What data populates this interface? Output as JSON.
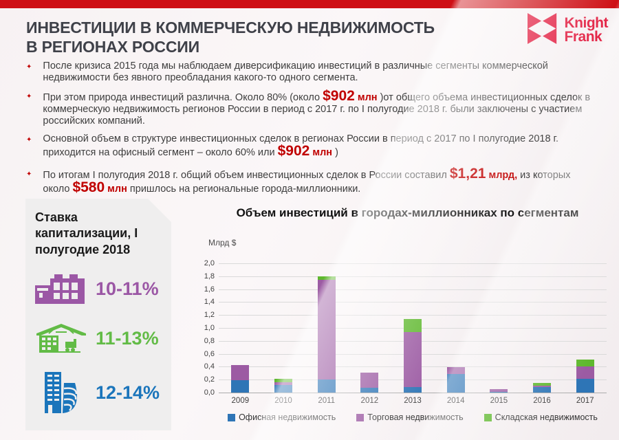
{
  "header": {
    "title_line1": "ИНВЕСТИЦИИ В КОММЕРЧЕСКУЮ НЕДВИЖИМОСТЬ",
    "title_line2": "В РЕГИОНАХ РОССИИ",
    "logo_line1": "Knight",
    "logo_line2": "Frank"
  },
  "bullets": [
    {
      "segments": [
        {
          "s": "n",
          "t": "После кризиса 2015 года мы наблюдаем диверсификацию инвестиций в различные сегменты коммерческой недвижимости без явного преобладания какого-то одного сегмента."
        }
      ]
    },
    {
      "segments": [
        {
          "s": "n",
          "t": "При этом природа инвестиций различна. Около 80% (около "
        },
        {
          "s": "br",
          "t": "$902"
        },
        {
          "s": "sr",
          "t": " млн"
        },
        {
          "s": "n",
          "t": " )от общего объема инвестиционных сделок в коммерческую недвижимость регионов России в период с 2017 г. по I полугодие 2018 г. были заключены с участием российских компаний."
        }
      ]
    },
    {
      "segments": [
        {
          "s": "n",
          "t": "Основной объем в структуре  инвестиционных сделок в регионах России в период с 2017 по I полугодие 2018 г. приходится на офисный сегмент – около 60% или "
        },
        {
          "s": "br",
          "t": "$902"
        },
        {
          "s": "sr",
          "t": " млн"
        },
        {
          "s": "n",
          "t": " )"
        }
      ]
    },
    {
      "segments": [
        {
          "s": "n",
          "t": "По итогам I полугодия 2018 г. общий объем инвестиционных сделок в России составил "
        },
        {
          "s": "br",
          "t": "$1,21"
        },
        {
          "s": "sr",
          "t": " млрд,"
        },
        {
          "s": "n",
          "t": " из которых около "
        },
        {
          "s": "br",
          "t": "$580"
        },
        {
          "s": "sr",
          "t": " млн"
        },
        {
          "s": "n",
          "t": " пришлось на региональные города-миллионники."
        }
      ]
    }
  ],
  "panel": {
    "title": "Ставка капитализации, I полугодие 2018",
    "items": [
      {
        "rate": "10-11%",
        "icon": "office-building-icon",
        "color": "#9B57A5"
      },
      {
        "rate": "11-13%",
        "icon": "warehouse-icon",
        "color": "#62BB46"
      },
      {
        "rate": "12-14%",
        "icon": "towers-icon",
        "color": "#1B75BB"
      }
    ]
  },
  "chart_data": {
    "type": "bar",
    "stacked": true,
    "title": "Объем инвестиций в городах-миллионниках по сегментам",
    "ylabel": "Млрд $",
    "xlabel": "",
    "ylim": [
      0,
      2.0
    ],
    "ytick_step": 0.2,
    "yticks": [
      "2,0",
      "1,8",
      "1,6",
      "1,4",
      "1,2",
      "1,0",
      "0,8",
      "0,6",
      "0,4",
      "0,2",
      "0,0"
    ],
    "grid": true,
    "legend_position": "bottom",
    "categories": [
      "2009",
      "2010",
      "2011",
      "2012",
      "2013",
      "2014",
      "2015",
      "2016",
      "2017"
    ],
    "series": [
      {
        "name": "Офисная недвижимость",
        "color": "#2E75B6",
        "values": [
          0.19,
          0.12,
          0.2,
          0.07,
          0.08,
          0.29,
          0.01,
          0.09,
          0.21
        ]
      },
      {
        "name": "Торговая недвижимость",
        "color": "#9C5BA3",
        "values": [
          0.24,
          0.035,
          1.55,
          0.24,
          0.86,
          0.1,
          0.04,
          0.015,
          0.19
        ]
      },
      {
        "name": "Складская недвижимость",
        "color": "#5FB82E",
        "values": [
          0.0,
          0.055,
          0.05,
          0.0,
          0.2,
          0.0,
          0.0,
          0.045,
          0.11
        ]
      }
    ],
    "totals": [
      0.43,
      0.21,
      1.8,
      0.31,
      1.14,
      0.39,
      0.05,
      0.15,
      0.51
    ]
  },
  "colors": {
    "top_bar": "#CE1016",
    "accent_red_text": "#C00000",
    "logo_red": "#E32345",
    "title_text": "#3F4149",
    "body_text": "#3D3D3D",
    "panel_bg": "#EFEEEE",
    "gridline": "#D9D9D9"
  }
}
